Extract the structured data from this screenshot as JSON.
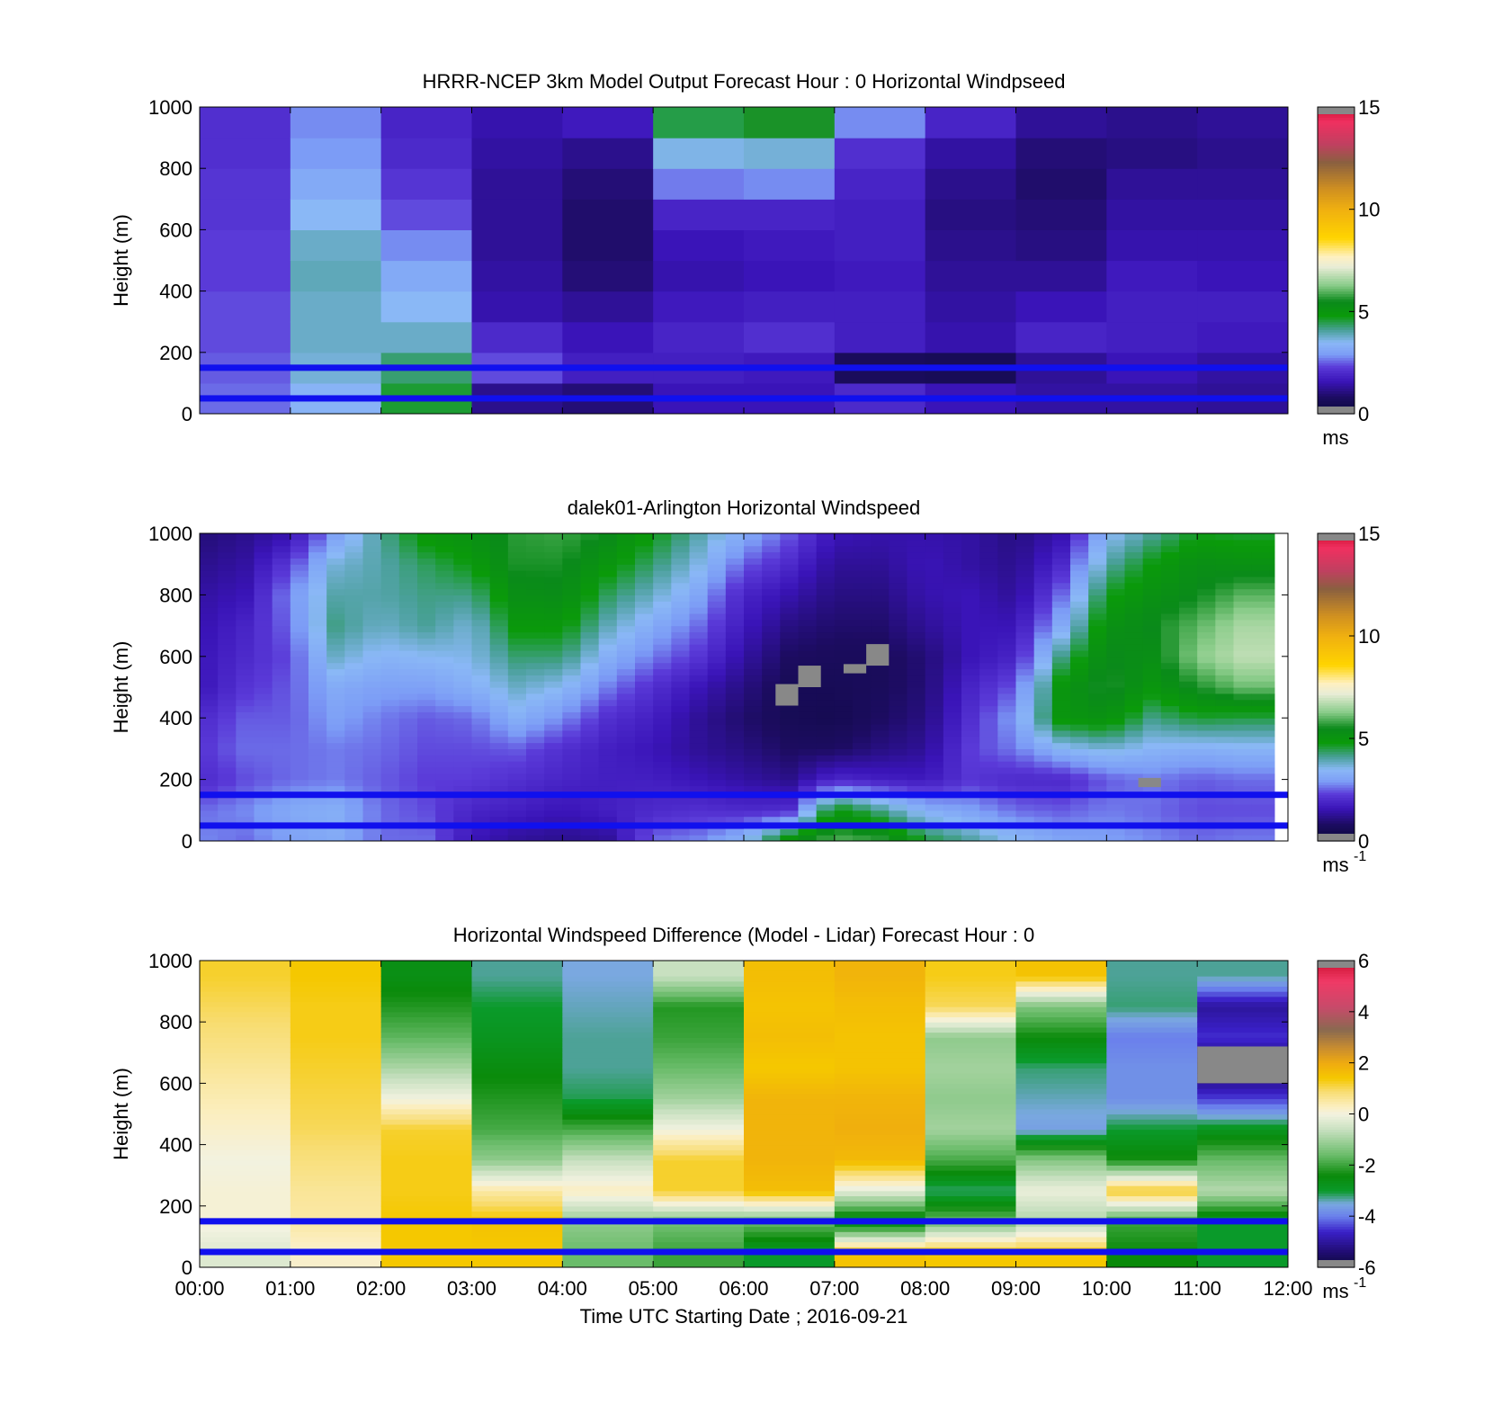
{
  "chart_data": [
    {
      "type": "heatmap",
      "title": "HRRR-NCEP 3km Model Output   Forecast Hour : 0 Horizontal Windpseed",
      "ylabel": "Height (m)",
      "xlabel": "",
      "ylim": [
        0,
        1000
      ],
      "y_ticks": [
        "0",
        "200",
        "400",
        "600",
        "800",
        "1000"
      ],
      "x_ticks": [],
      "clim": [
        0,
        15
      ],
      "colorbar_ticks": [
        "0",
        "5",
        "10",
        "15"
      ],
      "colorbar_label": "ms",
      "colorbar_exp": "",
      "colormap": "windspeed",
      "data_source": "model",
      "reference_lines_m": [
        150,
        50
      ],
      "reference_line_color": "#1010ee",
      "heights_m": [
        0,
        100,
        200,
        300,
        400,
        500,
        600,
        700,
        800,
        900,
        1000
      ],
      "columns": [
        {
          "time": "00:00",
          "values": [
            2.6,
            2.5,
            2.4,
            2.4,
            2.3,
            2.3,
            2.2,
            2.2,
            2.1,
            2.1
          ]
        },
        {
          "time": "01:00",
          "values": [
            3.4,
            3.7,
            3.8,
            3.8,
            3.9,
            3.8,
            3.5,
            3.2,
            2.9,
            2.8
          ]
        },
        {
          "time": "02:00",
          "values": [
            4.6,
            4.3,
            3.8,
            3.5,
            3.2,
            2.8,
            2.4,
            2.2,
            2.0,
            1.9
          ]
        },
        {
          "time": "03:00",
          "values": [
            1.2,
            2.4,
            2.0,
            1.5,
            1.4,
            1.3,
            1.3,
            1.3,
            1.4,
            1.5
          ]
        },
        {
          "time": "04:00",
          "values": [
            1.0,
            1.8,
            1.6,
            1.3,
            1.0,
            0.9,
            0.9,
            1.0,
            1.2,
            1.7
          ]
        },
        {
          "time": "05:00",
          "values": [
            1.6,
            1.8,
            1.9,
            1.7,
            1.5,
            1.6,
            1.9,
            2.7,
            3.6,
            4.5
          ]
        },
        {
          "time": "06:00",
          "values": [
            1.6,
            1.7,
            2.1,
            1.8,
            1.6,
            1.7,
            1.9,
            2.8,
            3.7,
            5.6
          ]
        },
        {
          "time": "07:00",
          "values": [
            2.0,
            0.7,
            1.8,
            1.8,
            1.7,
            1.8,
            1.8,
            1.9,
            2.1,
            2.8
          ]
        },
        {
          "time": "08:00",
          "values": [
            1.6,
            0.6,
            1.5,
            1.4,
            1.3,
            1.2,
            1.1,
            1.2,
            1.4,
            1.9
          ]
        },
        {
          "time": "09:00",
          "values": [
            1.4,
            1.3,
            1.9,
            1.6,
            1.3,
            1.1,
            1.0,
            0.9,
            1.0,
            1.3
          ]
        },
        {
          "time": "10:00",
          "values": [
            1.4,
            1.6,
            1.8,
            1.8,
            1.7,
            1.5,
            1.4,
            1.3,
            1.1,
            1.2
          ]
        },
        {
          "time": "11:00",
          "values": [
            1.3,
            1.4,
            1.7,
            1.8,
            1.6,
            1.5,
            1.4,
            1.3,
            1.2,
            1.3
          ]
        }
      ]
    },
    {
      "type": "heatmap",
      "title": "dalek01-Arlington  Horizontal Windspeed",
      "ylabel": "Height (m)",
      "xlabel": "",
      "ylim": [
        0,
        1000
      ],
      "y_ticks": [
        "0",
        "200",
        "400",
        "600",
        "800",
        "1000"
      ],
      "x_ticks": [],
      "clim": [
        0,
        15
      ],
      "colorbar_ticks": [
        "0",
        "5",
        "10",
        "15"
      ],
      "colorbar_label": "ms",
      "colorbar_exp": "-1",
      "colormap": "windspeed",
      "data_source": "lidar",
      "time_range_hours": [
        0,
        11.85
      ],
      "reference_lines_m": [
        150,
        50
      ],
      "reference_line_color": "#1010ee",
      "missing_color": "#888888",
      "missing_blocks": [
        {
          "t": [
            6.35,
            6.6
          ],
          "h": [
            440,
            510
          ]
        },
        {
          "t": [
            6.6,
            6.85
          ],
          "h": [
            500,
            570
          ]
        },
        {
          "t": [
            7.1,
            7.35
          ],
          "h": [
            545,
            575
          ]
        },
        {
          "t": [
            7.35,
            7.6
          ],
          "h": [
            570,
            640
          ]
        },
        {
          "t": [
            10.35,
            10.6
          ],
          "h": [
            175,
            205
          ]
        }
      ],
      "anchors_hours": [
        0,
        0.5,
        1,
        1.5,
        2,
        2.5,
        3,
        3.5,
        4,
        4.5,
        5,
        5.5,
        6,
        6.5,
        7,
        7.5,
        8,
        8.5,
        9,
        9.5,
        10,
        10.5,
        11,
        11.5,
        12
      ],
      "anchors_heights_m": [
        0,
        100,
        200,
        300,
        400,
        500,
        600,
        700,
        800,
        900,
        1000
      ],
      "anchor_grid": [
        [
          2.8,
          2.6,
          2.0,
          2.2,
          2.0,
          1.6,
          1.6,
          1.5,
          1.4,
          1.2,
          1.0
        ],
        [
          2.6,
          2.8,
          2.4,
          2.6,
          2.5,
          2.2,
          2.0,
          1.9,
          1.6,
          1.4,
          1.2
        ],
        [
          3.0,
          3.2,
          2.6,
          2.6,
          2.5,
          2.5,
          2.4,
          2.6,
          2.8,
          2.3,
          1.5
        ],
        [
          3.2,
          3.3,
          2.7,
          2.7,
          3.0,
          3.2,
          3.8,
          4.2,
          4.0,
          3.7,
          3.0
        ],
        [
          2.6,
          2.6,
          2.5,
          2.6,
          2.7,
          3.0,
          3.4,
          3.8,
          4.0,
          4.0,
          4.1
        ],
        [
          2.6,
          2.4,
          2.3,
          2.4,
          2.5,
          3.0,
          3.5,
          4.1,
          4.2,
          4.4,
          5.0
        ],
        [
          1.6,
          1.9,
          2.3,
          2.4,
          2.6,
          3.3,
          3.6,
          3.7,
          4.2,
          4.8,
          5.2
        ],
        [
          1.3,
          1.8,
          2.1,
          2.5,
          3.3,
          3.8,
          4.3,
          4.9,
          5.3,
          5.6,
          5.7
        ],
        [
          1.2,
          1.6,
          1.9,
          2.1,
          2.8,
          3.5,
          4.3,
          4.9,
          5.4,
          5.6,
          5.8
        ],
        [
          1.3,
          1.8,
          1.8,
          1.8,
          2.1,
          2.7,
          3.3,
          3.9,
          4.4,
          5.0,
          5.5
        ],
        [
          2.6,
          2.0,
          1.8,
          1.6,
          1.8,
          2.1,
          2.7,
          3.2,
          3.8,
          4.3,
          4.8
        ],
        [
          2.8,
          2.1,
          1.6,
          1.3,
          1.3,
          1.6,
          2.2,
          2.6,
          3.1,
          3.6,
          4.0
        ],
        [
          3.4,
          2.0,
          1.4,
          1.1,
          0.9,
          1.1,
          1.4,
          1.7,
          1.9,
          2.5,
          3.2
        ],
        [
          5.3,
          2.1,
          1.2,
          0.8,
          0.6,
          0.6,
          0.8,
          1.1,
          1.5,
          2.0,
          2.5
        ],
        [
          6.0,
          5.0,
          2.0,
          0.8,
          0.5,
          0.6,
          0.7,
          0.9,
          1.1,
          1.3,
          1.6
        ],
        [
          5.8,
          4.2,
          1.8,
          1.1,
          0.8,
          0.7,
          0.7,
          0.9,
          1.1,
          1.3,
          1.5
        ],
        [
          4.6,
          3.3,
          1.7,
          1.3,
          1.1,
          1.0,
          1.0,
          1.3,
          1.5,
          1.6,
          1.5
        ],
        [
          4.1,
          3.0,
          2.2,
          2.3,
          2.1,
          1.9,
          1.6,
          1.6,
          1.6,
          1.4,
          1.4
        ],
        [
          3.5,
          2.6,
          2.0,
          2.7,
          3.0,
          2.5,
          1.9,
          1.6,
          1.3,
          1.2,
          1.1
        ],
        [
          3.1,
          2.5,
          2.0,
          3.4,
          5.0,
          5.0,
          4.2,
          3.2,
          2.6,
          2.0,
          1.5
        ],
        [
          3.0,
          2.7,
          2.5,
          3.7,
          5.2,
          5.7,
          5.5,
          5.2,
          4.7,
          4.0,
          3.4
        ],
        [
          2.8,
          2.6,
          2.7,
          3.4,
          4.2,
          5.0,
          5.3,
          5.5,
          5.2,
          4.8,
          4.1
        ],
        [
          2.6,
          2.4,
          2.5,
          3.3,
          4.6,
          5.6,
          6.3,
          6.0,
          5.5,
          5.3,
          4.7
        ],
        [
          2.7,
          2.4,
          2.6,
          3.4,
          4.5,
          6.1,
          6.8,
          6.6,
          6.0,
          5.2,
          4.6
        ],
        [
          2.7,
          2.4,
          2.6,
          3.4,
          4.5,
          6.1,
          6.8,
          6.6,
          6.0,
          5.2,
          4.6
        ]
      ]
    },
    {
      "type": "heatmap",
      "title": "Horizontal Windspeed Difference (Model - Lidar) Forecast Hour : 0",
      "ylabel": "Height (m)",
      "xlabel": "Time UTC  Starting Date ; 2016-09-21",
      "ylim": [
        0,
        1000
      ],
      "y_ticks": [
        "0",
        "200",
        "400",
        "600",
        "800",
        "1000"
      ],
      "x_ticks": [
        "00:00",
        "01:00",
        "02:00",
        "03:00",
        "04:00",
        "05:00",
        "06:00",
        "07:00",
        "08:00",
        "09:00",
        "10:00",
        "11:00",
        "12:00"
      ],
      "clim": [
        -6,
        6
      ],
      "colorbar_ticks": [
        "-6",
        "-4",
        "-2",
        "0",
        "2",
        "4",
        "6"
      ],
      "colorbar_label": "ms",
      "colorbar_exp": "-1",
      "colormap": "difference",
      "data_source": "difference",
      "reference_lines_m": [
        150,
        50
      ],
      "reference_line_color": "#1010ee",
      "heights_m": [
        0,
        100,
        200,
        300,
        400,
        500,
        600,
        700,
        800,
        900,
        1000
      ],
      "missing_blocks": [
        {
          "t": [
            11,
            12
          ],
          "h": [
            600,
            720
          ]
        }
      ],
      "columns": [
        {
          "time": "00:00",
          "values": [
            -0.3,
            0.1,
            0.1,
            0.0,
            0.2,
            0.4,
            0.6,
            0.8,
            1.0,
            1.2
          ]
        },
        {
          "time": "01:00",
          "values": [
            0.2,
            0.5,
            0.6,
            0.8,
            1.0,
            1.1,
            1.2,
            1.3,
            1.3,
            1.4
          ]
        },
        {
          "time": "02:00",
          "values": [
            1.4,
            1.4,
            1.3,
            1.3,
            1.2,
            0.0,
            -0.9,
            -1.7,
            -2.2,
            -2.6
          ]
        },
        {
          "time": "03:00",
          "values": [
            1.4,
            1.5,
            0.5,
            -1.2,
            -1.9,
            -2.2,
            -2.5,
            -2.8,
            -3.0,
            -3.3
          ]
        },
        {
          "time": "04:00",
          "values": [
            -1.6,
            -1.2,
            0.3,
            -0.6,
            -1.9,
            -3.1,
            -3.3,
            -3.3,
            -3.4,
            -3.5
          ]
        },
        {
          "time": "05:00",
          "values": [
            -2.0,
            -1.5,
            1.2,
            1.2,
            0.0,
            -1.0,
            -1.6,
            -2.0,
            -2.2,
            -0.6
          ]
        },
        {
          "time": "06:00",
          "values": [
            -3.0,
            -1.6,
            1.6,
            1.8,
            1.8,
            1.8,
            1.4,
            1.6,
            1.5,
            1.6
          ]
        },
        {
          "time": "07:00",
          "values": [
            1.5,
            -3.0,
            -0.2,
            1.7,
            1.9,
            1.8,
            1.5,
            1.5,
            1.6,
            1.8
          ]
        },
        {
          "time": "08:00",
          "values": [
            1.4,
            -1.6,
            -3.2,
            -1.9,
            -1.0,
            -1.2,
            -1.0,
            -1.2,
            1.0,
            1.3
          ]
        },
        {
          "time": "09:00",
          "values": [
            1.4,
            -0.9,
            -0.1,
            -1.3,
            -3.6,
            -3.4,
            -3.2,
            -2.4,
            -1.4,
            1.5
          ]
        },
        {
          "time": "10:00",
          "values": [
            -2.4,
            -2.0,
            1.3,
            -2.3,
            -3.0,
            -3.8,
            -3.8,
            -4.0,
            -3.2,
            -3.3
          ]
        },
        {
          "time": "11:00",
          "values": [
            -3.0,
            -3.0,
            -0.8,
            -1.6,
            -2.8,
            -4.4,
            -5.6,
            -4.5,
            -5.0,
            -3.3
          ]
        }
      ]
    }
  ]
}
